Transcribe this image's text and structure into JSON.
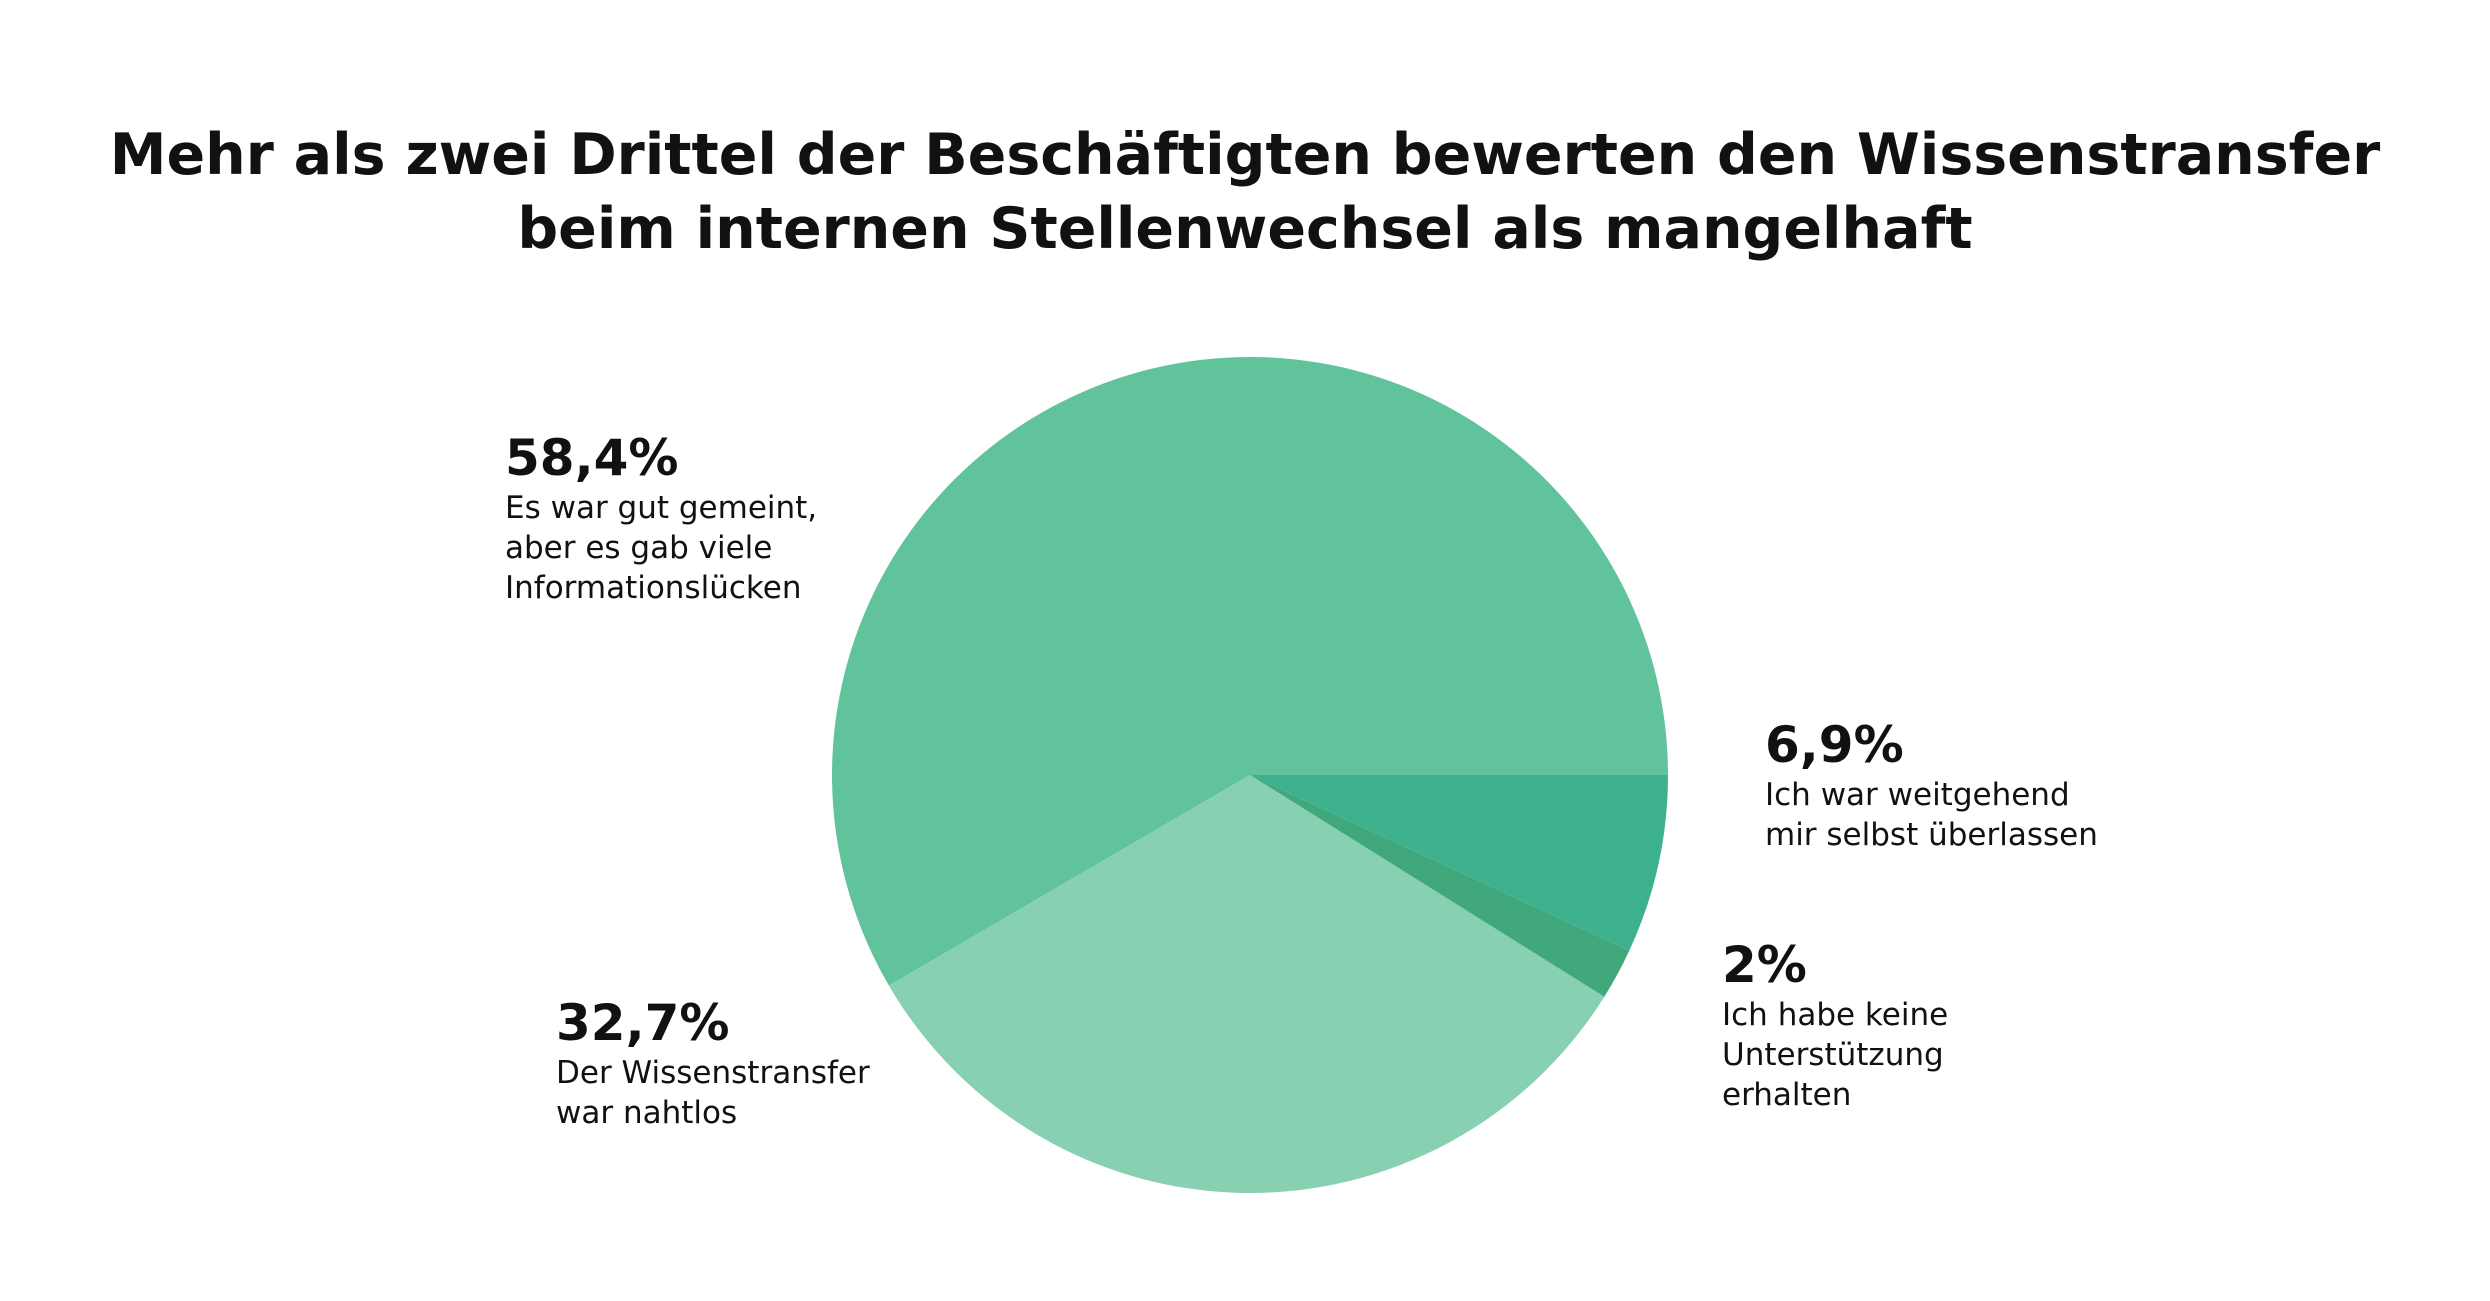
{
  "chart_data": {
    "type": "pie",
    "title": [
      "Mehr als zwei Drittel der Beschäftigten bewerten den Wissenstransfer",
      "beim internen Stellenwechsel als mangelhaft"
    ],
    "slices": [
      {
        "value": 58.4,
        "pct_label": "58,4%",
        "label": "Es war gut gemeint,\naber es gab viele\nInformationslücken",
        "color": "#60c39b"
      },
      {
        "value": 32.7,
        "pct_label": "32,7%",
        "label": "Der Wissenstransfer\nwar nahtlos",
        "color": "#87d0b1"
      },
      {
        "value": 2,
        "pct_label": "2%",
        "label": "Ich habe keine\nUnterstützung\nerhalten",
        "color": "#41a87b"
      },
      {
        "value": 6.9,
        "pct_label": "6,9%",
        "label": "Ich war weitgehend\nmir selbst überlassen",
        "color": "#3db18e"
      }
    ],
    "start": "3 o'clock",
    "direction": "counterclockwise",
    "legend": "none"
  }
}
